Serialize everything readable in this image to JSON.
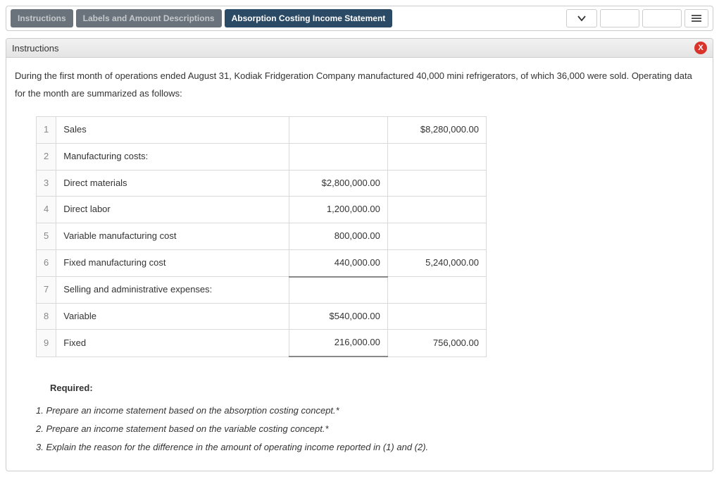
{
  "tabs": {
    "instructions": "Instructions",
    "labels": "Labels and Amount Descriptions",
    "absorption": "Absorption Costing Income Statement"
  },
  "panel": {
    "title": "Instructions",
    "intro": "During the first month of operations ended August 31, Kodiak Fridgeration Company manufactured 40,000 mini refrigerators, of which 36,000 were sold. Operating data for the month are summarized as follows:"
  },
  "table": {
    "rows": [
      {
        "num": "1",
        "label": "Sales",
        "indent": false,
        "col1": "",
        "col2": "$8,280,000.00",
        "u1": false
      },
      {
        "num": "2",
        "label": "Manufacturing costs:",
        "indent": false,
        "col1": "",
        "col2": "",
        "u1": false
      },
      {
        "num": "3",
        "label": "Direct materials",
        "indent": true,
        "col1": "$2,800,000.00",
        "col2": "",
        "u1": false
      },
      {
        "num": "4",
        "label": "Direct labor",
        "indent": true,
        "col1": "1,200,000.00",
        "col2": "",
        "u1": false
      },
      {
        "num": "5",
        "label": "Variable manufacturing cost",
        "indent": true,
        "col1": "800,000.00",
        "col2": "",
        "u1": false
      },
      {
        "num": "6",
        "label": "Fixed manufacturing cost",
        "indent": true,
        "col1": "440,000.00",
        "col2": "5,240,000.00",
        "u1": true
      },
      {
        "num": "7",
        "label": "Selling and administrative expenses:",
        "indent": false,
        "col1": "",
        "col2": "",
        "u1": false
      },
      {
        "num": "8",
        "label": "Variable",
        "indent": true,
        "col1": "$540,000.00",
        "col2": "",
        "u1": false
      },
      {
        "num": "9",
        "label": "Fixed",
        "indent": true,
        "col1": "216,000.00",
        "col2": "756,000.00",
        "u1": true
      }
    ]
  },
  "required": {
    "title": "Required:",
    "items": [
      "1.  Prepare an income statement based on the absorption costing concept.*",
      "2.  Prepare an income statement based on the variable costing concept.*",
      "3.  Explain the reason for the difference in the amount of operating income reported in (1) and (2)."
    ]
  },
  "colors": {
    "tab_inactive_bg": "#6a737b",
    "tab_active_bg": "#2b4a66",
    "border": "#cccccc",
    "close_bg": "#d9342b"
  }
}
